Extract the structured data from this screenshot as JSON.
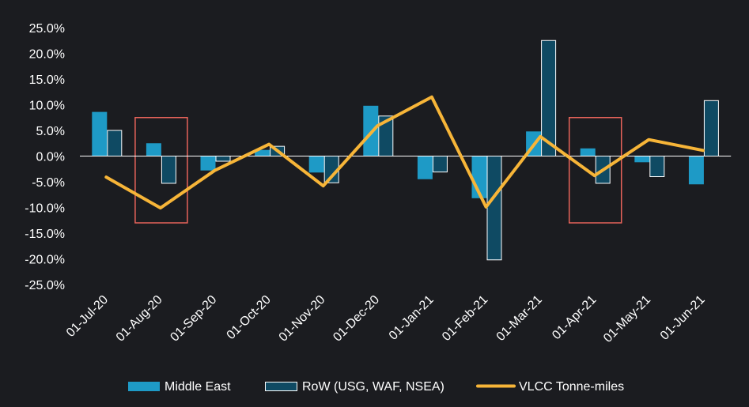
{
  "chart_data": {
    "type": "bar",
    "title": "",
    "xlabel": "",
    "ylabel": "",
    "categories": [
      "01-Jul-20",
      "01-Aug-20",
      "01-Sep-20",
      "01-Oct-20",
      "01-Nov-20",
      "01-Dec-20",
      "01-Jan-21",
      "01-Feb-21",
      "01-Mar-21",
      "01-Apr-21",
      "01-May-21",
      "01-Jun-21"
    ],
    "y_ticks": [
      "25.0%",
      "20.0%",
      "15.0%",
      "10.0%",
      "5.0%",
      "0.0%",
      "-5.0%",
      "-10.0%",
      "-15.0%",
      "-20.0%",
      "-25.0%"
    ],
    "ylim": [
      -25,
      25
    ],
    "series": [
      {
        "name": "Middle East",
        "type": "bar",
        "color": "#1e9ac6",
        "values": [
          8.6,
          2.5,
          -2.8,
          1.2,
          -3.2,
          9.8,
          -4.5,
          -8.2,
          4.8,
          1.5,
          -1.2,
          -5.5
        ]
      },
      {
        "name": "RoW (USG, WAF, NSEA)",
        "type": "bar",
        "color": "#0f4a63",
        "edge": "#ffffff",
        "values": [
          5.0,
          -5.3,
          -1.0,
          1.9,
          -5.2,
          7.8,
          -3.1,
          -20.2,
          22.5,
          -5.3,
          -4.0,
          10.8
        ]
      },
      {
        "name": "VLCC Tonne-miles",
        "type": "line",
        "color": "#f7b538",
        "values": [
          -4.1,
          -10.1,
          -2.8,
          2.3,
          -5.8,
          5.9,
          11.5,
          -9.9,
          3.8,
          -3.8,
          3.2,
          1.1
        ]
      }
    ],
    "annotations": [
      {
        "type": "highlight-box",
        "category": "01-Aug-20",
        "color": "#e8635a"
      },
      {
        "type": "highlight-box",
        "category": "01-Apr-21",
        "color": "#e8635a"
      }
    ],
    "legend_position": "bottom",
    "grid": false
  }
}
